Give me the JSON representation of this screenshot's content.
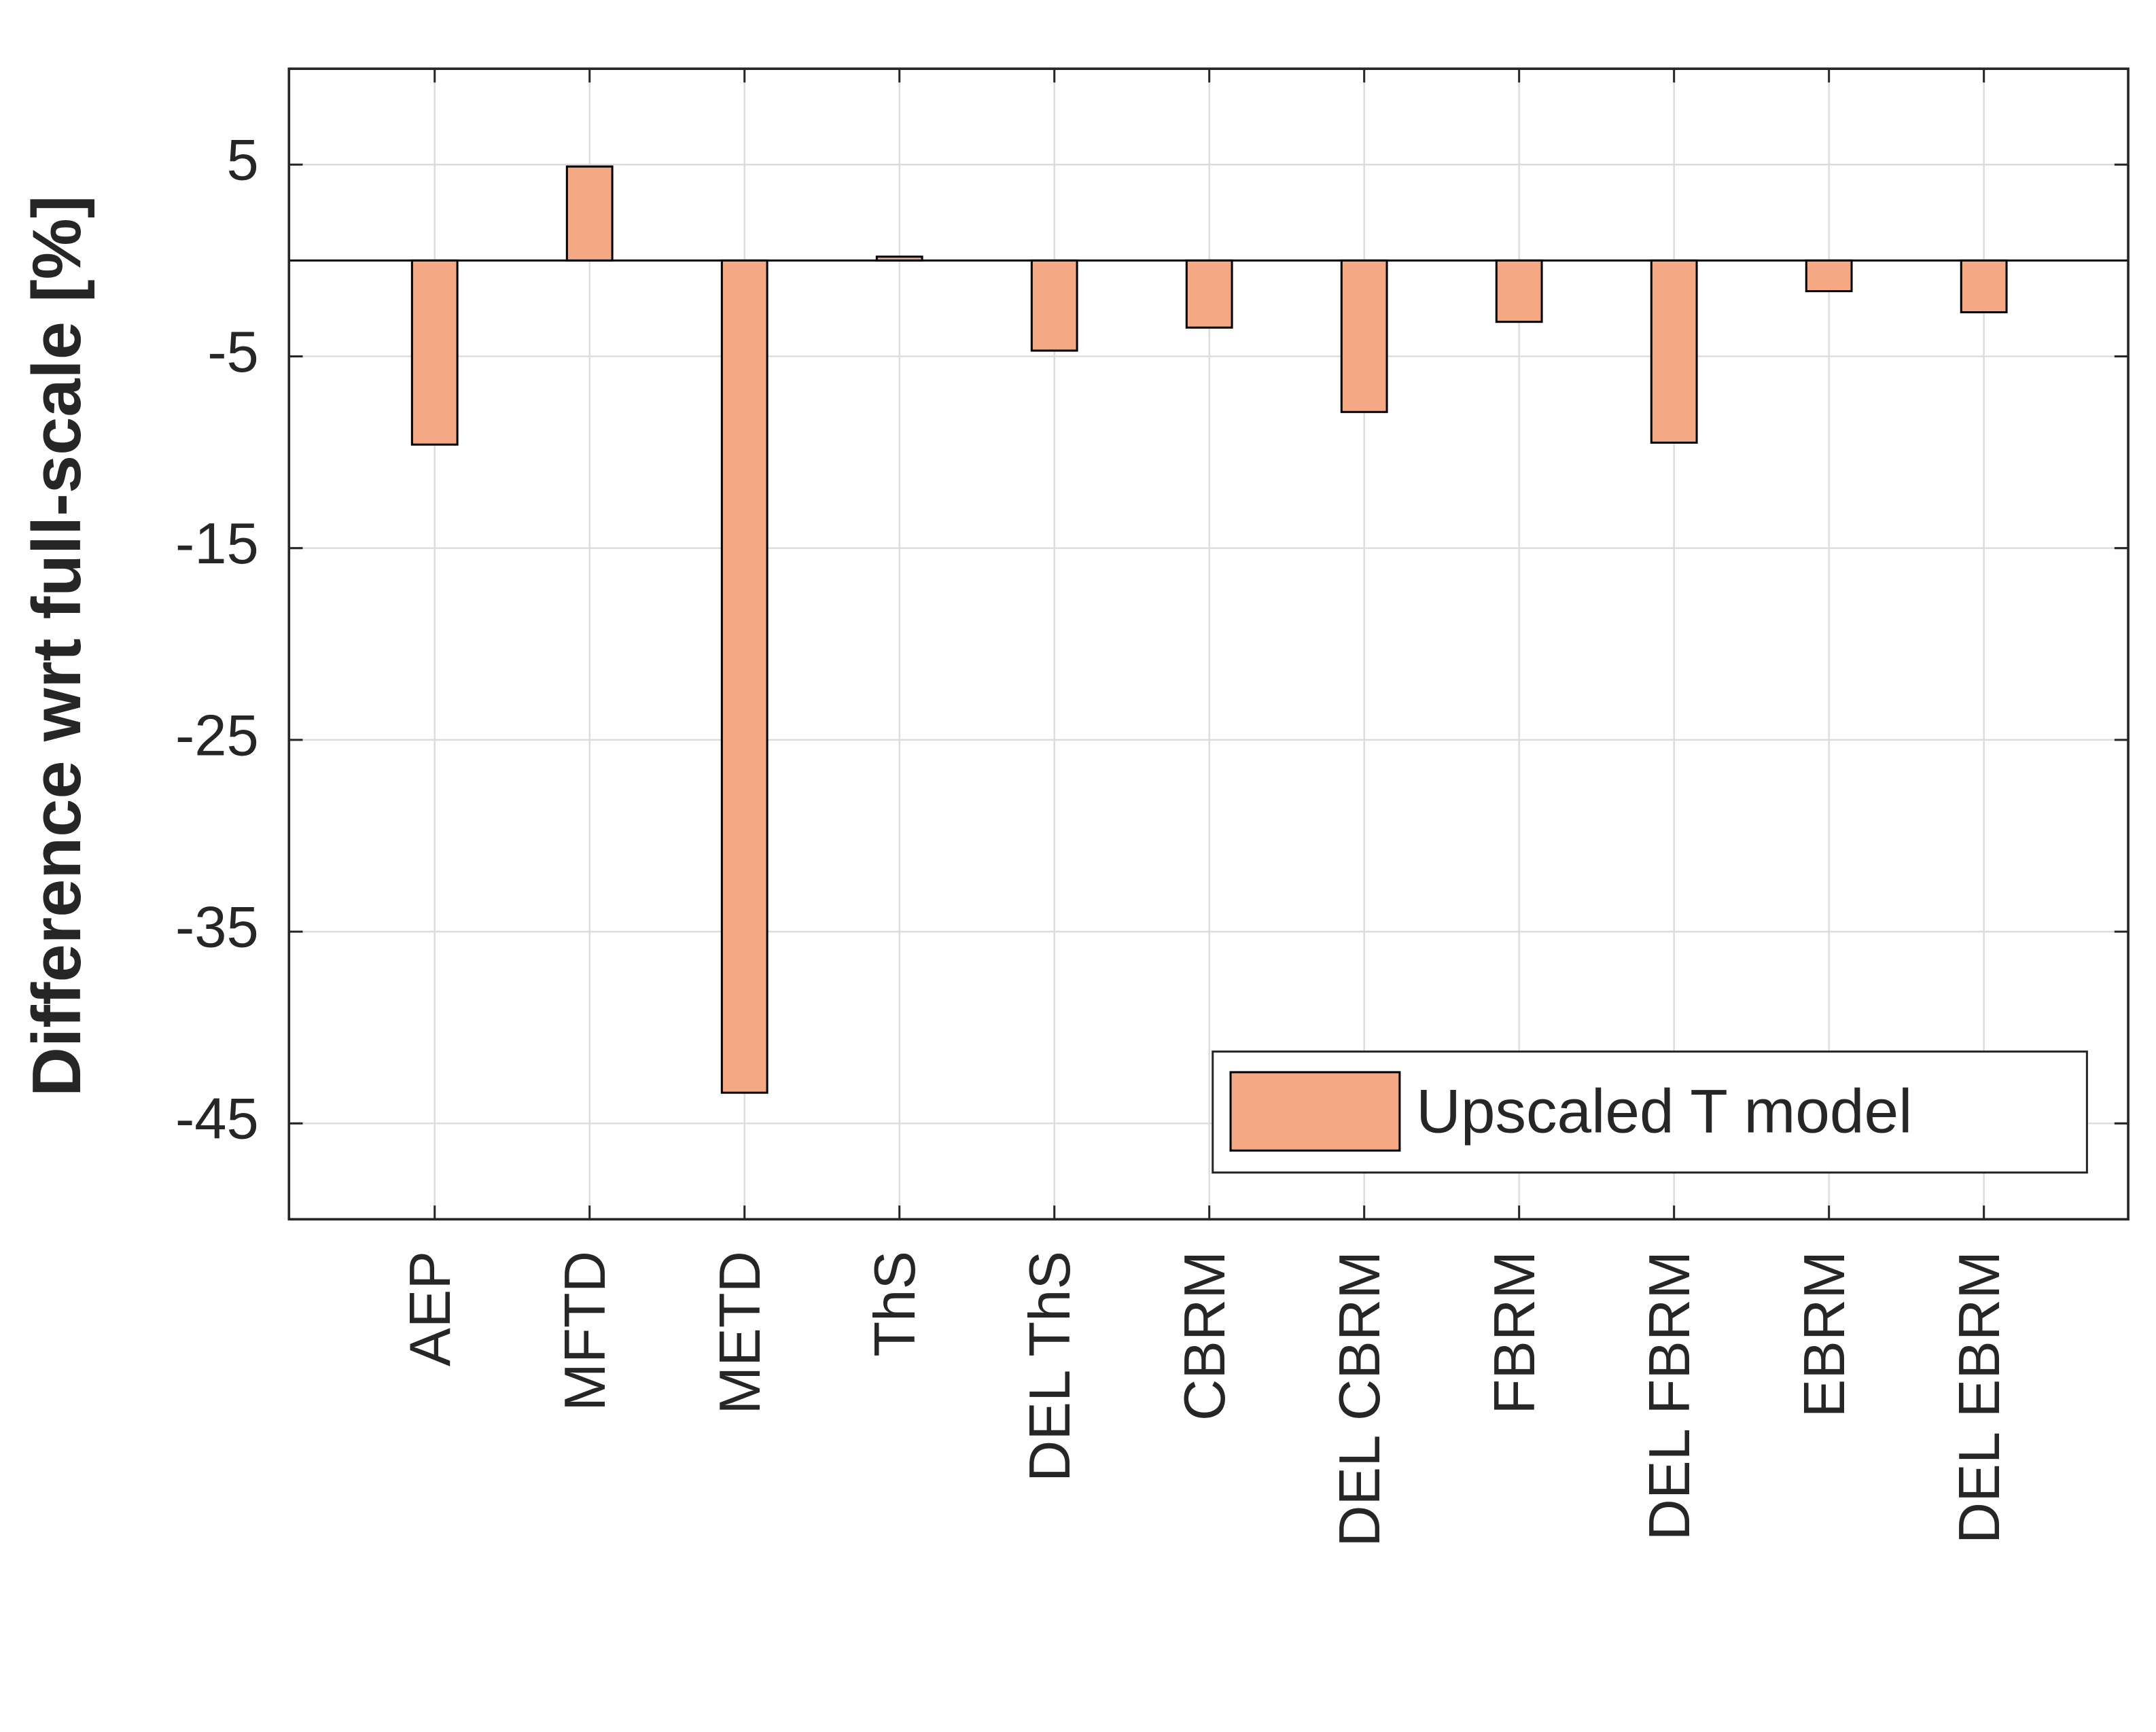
{
  "chart_data": {
    "type": "bar",
    "ylabel": "Difference wrt full-scale [%]",
    "categories": [
      "AEP",
      "MFTD",
      "METD",
      "ThS",
      "DEL ThS",
      "CBRM",
      "DEL CBRM",
      "FBRM",
      "DEL FBRM",
      "EBRM",
      "DEL EBRM"
    ],
    "series": [
      {
        "name": "Upscaled T model",
        "color": "#f4a884",
        "values": [
          -9.6,
          4.9,
          -43.4,
          0.2,
          -4.7,
          -3.5,
          -7.9,
          -3.2,
          -9.5,
          -1.6,
          -2.7
        ]
      }
    ],
    "ylim": [
      -50,
      10
    ],
    "yticks": [
      -45,
      -35,
      -25,
      -15,
      -5,
      5
    ],
    "grid": true,
    "legend": "lower right"
  }
}
